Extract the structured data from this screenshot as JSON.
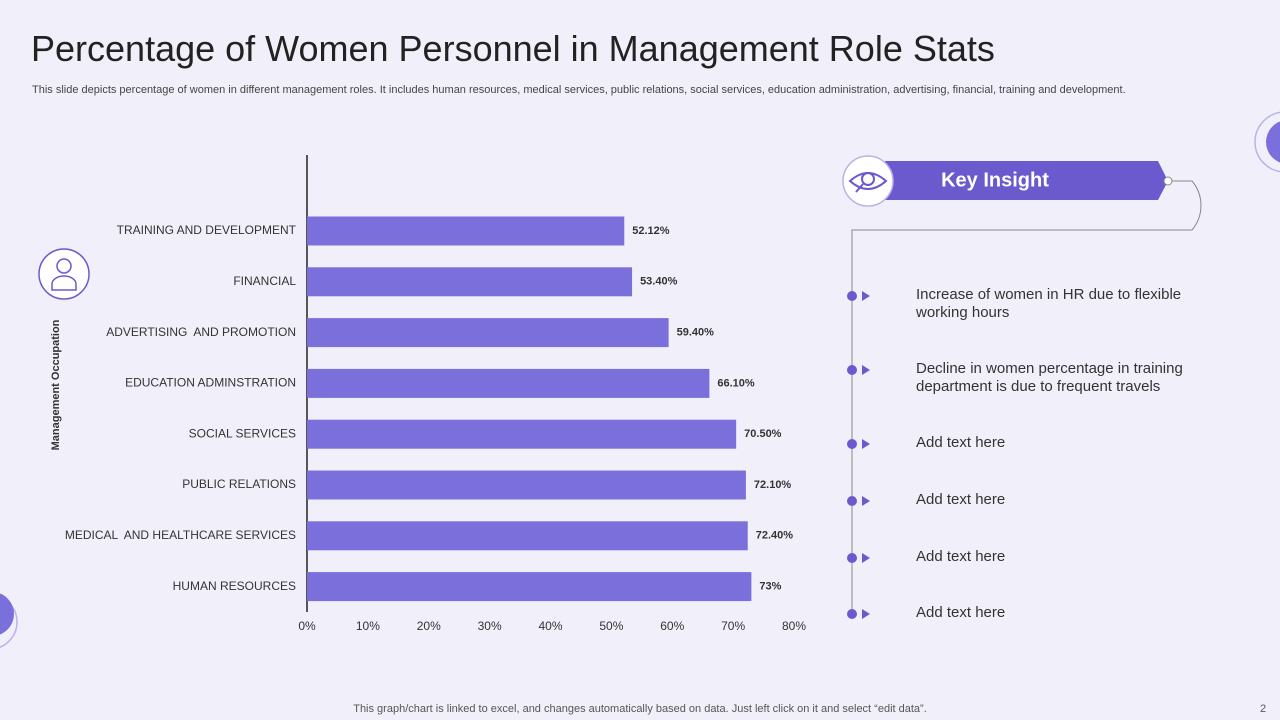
{
  "slide": {
    "title": "Percentage of Women Personnel in Management Role Stats",
    "subtitle": "This slide depicts percentage of women in different management roles. It includes human resources, medical services, public relations, social services, education administration, advertising, financial, training and development.",
    "footer": "This graph/chart is linked to excel,  and changes automatically based on data. Just left click on it and select “edit data”.",
    "page_number": "2"
  },
  "key_insight": {
    "heading": "Key Insight",
    "items": [
      "Increase of women in HR due to flexible working hours",
      "Decline in women percentage in training department is due to frequent travels",
      "Add text here",
      "Add text here",
      "Add text here",
      "Add text here"
    ]
  },
  "chart_data": {
    "type": "hbar",
    "y_label": "Management Occupation",
    "categories": [
      "TRAINING AND DEVELOPMENT",
      "FINANCIAL",
      "ADVERTISING  AND PROMOTION",
      "EDUCATION ADMINSTRATION",
      "SOCIAL SERVICES",
      "PUBLIC RELATIONS",
      "MEDICAL  AND HEALTHCARE SERVICES",
      "HUMAN RESOURCES"
    ],
    "values": [
      52.12,
      53.4,
      59.4,
      66.1,
      70.5,
      72.1,
      72.4,
      73
    ],
    "value_labels": [
      "52.12%",
      "53.40%",
      "59.40%",
      "66.10%",
      "70.50%",
      "72.10%",
      "72.40%",
      "73%"
    ],
    "color": "#7b6fdc",
    "xlim": [
      0,
      80
    ],
    "xticks": [
      {
        "value": 0,
        "label": "0%"
      },
      {
        "value": 10,
        "label": "10%"
      },
      {
        "value": 20,
        "label": "20%"
      },
      {
        "value": 30,
        "label": "30%"
      },
      {
        "value": 40,
        "label": "40%"
      },
      {
        "value": 50,
        "label": "50%"
      },
      {
        "value": 60,
        "label": "60%"
      },
      {
        "value": 70,
        "label": "70%"
      },
      {
        "value": 80,
        "label": "80%"
      }
    ],
    "grid": false
  }
}
